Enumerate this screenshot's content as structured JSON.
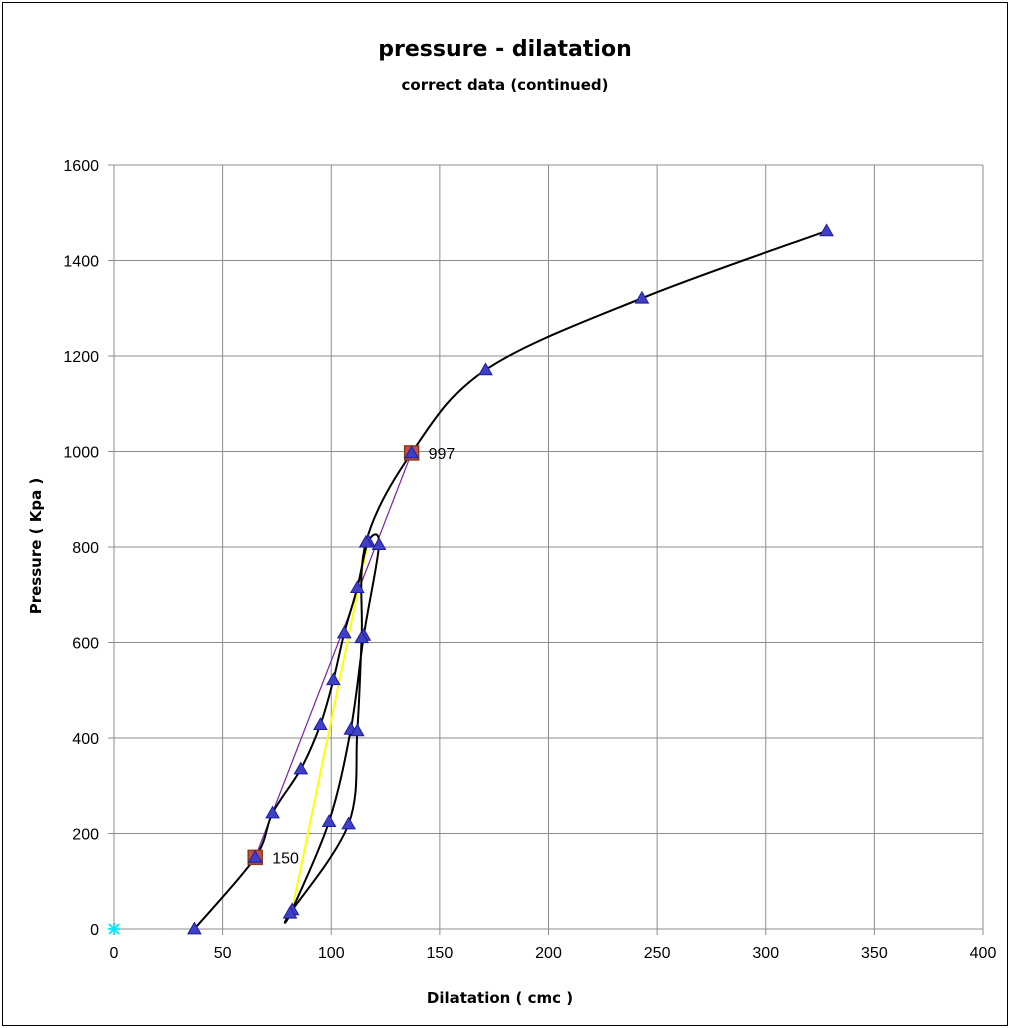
{
  "chart_data": {
    "type": "scatter",
    "title": "pressure - dilatation",
    "subtitle": "correct data (continued)",
    "xlabel": "Dilatation ( cmc )",
    "ylabel": "Pressure ( Kpa )",
    "xlim": [
      0,
      400
    ],
    "ylim": [
      0,
      1600
    ],
    "xticks": [
      "0",
      "50",
      "100",
      "150",
      "200",
      "250",
      "300",
      "350",
      "400"
    ],
    "yticks": [
      "0",
      "200",
      "400",
      "600",
      "800",
      "1000",
      "1200",
      "1400",
      "1600"
    ],
    "grid": true,
    "colors": {
      "main_line": "#000000",
      "marker_fill": "#3f3fc7",
      "marker_edge": "#1f1f9a",
      "square_fill": "#c0504d",
      "square_edge": "#8b3a1a",
      "yellow_line": "#ffff00",
      "purple_line": "#7b1fa2",
      "origin_marker": "#00e5ff"
    },
    "series": [
      {
        "points": [
          [
            37,
            0
          ],
          [
            65,
            150
          ],
          [
            73,
            243
          ],
          [
            86,
            335
          ],
          [
            95,
            428
          ],
          [
            101,
            522
          ],
          [
            106,
            620
          ],
          [
            112,
            715
          ],
          [
            117,
            812
          ],
          [
            122,
            805
          ],
          [
            115,
            615
          ],
          [
            109,
            418
          ],
          [
            99,
            225
          ],
          [
            82,
            40
          ],
          [
            81,
            33
          ],
          [
            108,
            220
          ],
          [
            112,
            415
          ],
          [
            114,
            610
          ],
          [
            116,
            810
          ],
          [
            137,
            997
          ],
          [
            171,
            1171
          ],
          [
            243,
            1321
          ],
          [
            328,
            1462
          ]
        ]
      },
      {
        "points": [
          [
            82,
            40
          ],
          [
            117,
            812
          ]
        ]
      },
      {
        "points": [
          [
            65,
            150
          ],
          [
            137,
            997
          ]
        ]
      },
      {
        "points": [
          [
            65,
            150
          ],
          [
            137,
            997
          ]
        ],
        "labels": [
          "150",
          "997"
        ]
      },
      {
        "points": [
          [
            0,
            0
          ]
        ]
      }
    ]
  }
}
